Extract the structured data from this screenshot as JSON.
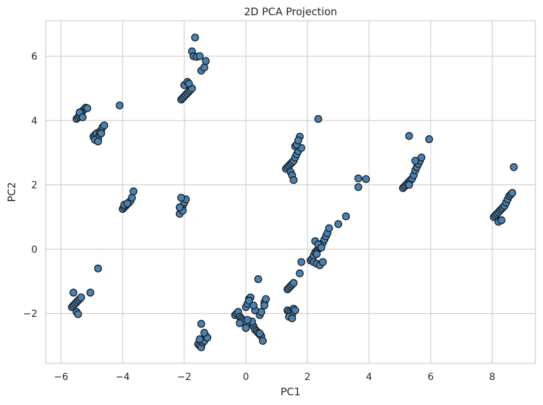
{
  "chart_data": {
    "type": "scatter",
    "title": "2D PCA Projection",
    "xlabel": "PC1",
    "ylabel": "PC2",
    "xlim": [
      -6.5,
      9.4
    ],
    "ylim": [
      -3.55,
      7.1
    ],
    "xticks": [
      -6,
      -4,
      -2,
      0,
      2,
      4,
      6,
      8
    ],
    "yticks": [
      -2,
      0,
      2,
      4,
      6
    ],
    "xtick_labels": [
      "−6",
      "−4",
      "−2",
      "0",
      "2",
      "4",
      "6",
      "8"
    ],
    "ytick_labels": [
      "−2",
      "0",
      "2",
      "4",
      "6"
    ],
    "grid": true,
    "marker_color": "#4682b4",
    "marker_edge": "#1a1a1a",
    "x": [
      -5.5,
      -5.45,
      -5.4,
      -5.35,
      -5.3,
      -5.25,
      -5.2,
      -5.15,
      -5.4,
      -5.3,
      -4.95,
      -4.9,
      -4.85,
      -4.8,
      -4.75,
      -4.7,
      -4.65,
      -4.6,
      -4.9,
      -4.8,
      -4.7,
      -4.1,
      -1.65,
      -1.75,
      -1.7,
      -1.6,
      -1.5,
      -1.45,
      -1.35,
      -1.3,
      -2.1,
      -2.05,
      -2.0,
      -1.95,
      -1.9,
      -1.85,
      -1.8,
      -1.75,
      -2.0,
      -1.9,
      -1.85,
      -4.0,
      -3.95,
      -3.9,
      -3.85,
      -3.8,
      -3.75,
      -3.7,
      -3.65,
      -3.95,
      -3.85,
      -2.15,
      -2.1,
      -2.05,
      -2.0,
      -1.95,
      -2.1,
      -2.05,
      -2.15,
      -5.65,
      -5.6,
      -5.55,
      -5.5,
      -5.45,
      -5.4,
      -5.35,
      -5.6,
      -5.5,
      -5.45,
      -5.05,
      -4.8,
      -1.55,
      -1.5,
      -1.45,
      -1.4,
      -1.35,
      -1.3,
      -1.25,
      -1.45,
      -1.35,
      -1.5,
      -0.35,
      -0.3,
      -0.25,
      -0.2,
      -0.15,
      -0.1,
      -0.05,
      0.0,
      0.05,
      0.1,
      0.15,
      0.2,
      0.25,
      0.3,
      0.35,
      0.4,
      0.45,
      0.5,
      0.55,
      0.6,
      0.65,
      -0.2,
      0.0,
      0.1,
      0.2,
      0.4,
      0.45,
      0.5,
      0.3,
      0.25,
      0.05,
      1.3,
      1.35,
      1.4,
      1.45,
      1.5,
      1.55,
      1.6,
      1.65,
      1.7,
      1.45,
      1.5,
      1.55,
      1.35,
      1.4,
      1.45,
      1.5,
      1.55,
      1.75,
      1.8,
      1.6,
      1.65,
      1.7,
      2.1,
      2.15,
      2.2,
      2.25,
      2.3,
      2.35,
      2.4,
      2.45,
      2.5,
      2.55,
      2.6,
      2.65,
      2.7,
      2.2,
      2.3,
      2.4,
      2.5,
      2.25,
      2.35,
      2.45,
      2.3,
      3.0,
      3.25,
      1.35,
      1.4,
      1.45,
      1.5,
      1.55,
      1.6,
      1.4,
      1.5,
      1.8,
      1.75,
      2.35,
      3.65,
      3.9,
      3.65,
      5.1,
      5.15,
      5.2,
      5.25,
      5.3,
      5.35,
      5.4,
      5.45,
      5.5,
      5.55,
      5.6,
      5.65,
      5.7,
      5.3,
      5.5,
      5.95,
      5.3,
      8.05,
      8.1,
      8.15,
      8.2,
      8.25,
      8.3,
      8.35,
      8.4,
      8.45,
      8.5,
      8.55,
      8.6,
      8.65,
      8.2,
      8.3,
      8.7,
      0.45,
      0.6
    ],
    "y": [
      4.05,
      4.1,
      4.15,
      4.2,
      4.3,
      4.35,
      4.4,
      4.38,
      4.25,
      4.1,
      3.5,
      3.55,
      3.6,
      3.45,
      3.65,
      3.7,
      3.8,
      3.85,
      3.4,
      3.35,
      3.6,
      4.47,
      6.58,
      6.15,
      6.0,
      5.98,
      6.0,
      5.55,
      5.65,
      5.85,
      4.65,
      4.7,
      4.75,
      4.8,
      4.85,
      4.9,
      4.95,
      5.0,
      5.1,
      5.2,
      5.15,
      1.25,
      1.3,
      1.35,
      1.4,
      1.45,
      1.5,
      1.6,
      1.8,
      1.38,
      1.42,
      1.1,
      1.25,
      1.35,
      1.45,
      1.55,
      1.6,
      1.2,
      1.3,
      -1.8,
      -1.75,
      -1.7,
      -1.65,
      -1.6,
      -1.55,
      -1.5,
      -1.35,
      -1.95,
      -2.02,
      -1.35,
      -0.6,
      -2.95,
      -3.0,
      -3.05,
      -2.9,
      -2.85,
      -2.7,
      -2.75,
      -2.32,
      -2.6,
      -2.8,
      -2.05,
      -2.0,
      -1.95,
      -2.1,
      -2.15,
      -2.2,
      -2.25,
      -1.8,
      -1.7,
      -1.55,
      -1.5,
      -2.3,
      -2.4,
      -2.5,
      -2.55,
      -2.6,
      -2.65,
      -2.7,
      -2.85,
      -1.65,
      -1.55,
      -2.3,
      -2.45,
      -1.6,
      -2.25,
      -0.93,
      -2.05,
      -1.95,
      -1.9,
      -1.75,
      -2.2,
      2.5,
      2.55,
      2.6,
      2.65,
      2.7,
      2.75,
      2.85,
      2.95,
      3.05,
      2.4,
      2.3,
      2.15,
      -1.25,
      -1.2,
      -1.15,
      -1.1,
      -1.05,
      3.5,
      3.15,
      3.2,
      3.25,
      3.38,
      -0.35,
      -0.3,
      -0.2,
      -0.1,
      -0.05,
      0.0,
      0.05,
      0.1,
      0.2,
      0.3,
      0.4,
      0.5,
      0.65,
      -0.4,
      -0.45,
      -0.5,
      -0.4,
      0.25,
      0.15,
      0.05,
      -0.15,
      0.78,
      1.02,
      -1.9,
      -1.95,
      -2.0,
      -2.05,
      -1.85,
      -1.9,
      -2.1,
      -2.15,
      -0.4,
      -0.75,
      4.05,
      2.2,
      2.18,
      1.93,
      1.9,
      1.95,
      2.0,
      2.05,
      2.1,
      2.15,
      2.2,
      2.3,
      2.45,
      2.55,
      2.65,
      2.75,
      2.85,
      2.0,
      2.75,
      3.42,
      3.52,
      1.0,
      1.05,
      1.1,
      1.15,
      1.2,
      1.25,
      1.3,
      1.35,
      1.45,
      1.55,
      1.65,
      1.7,
      1.75,
      0.85,
      0.9,
      2.55,
      -2.62,
      -1.75
    ]
  }
}
